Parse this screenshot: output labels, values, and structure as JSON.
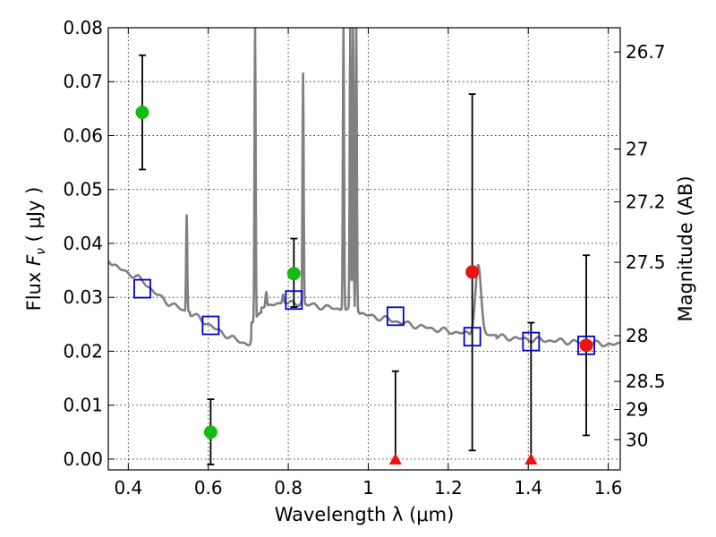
{
  "chart_data": {
    "type": "scatter",
    "title": "",
    "xlabel": "Wavelength  λ (μm)",
    "ylabel": "Flux  F_ν  ( μJy )",
    "ylabel_parts": {
      "prefix": "Flux  ",
      "sym": "F",
      "sub": "ν",
      "unit": " ( μJy )"
    },
    "y2label": "Magnitude (AB)",
    "xlim": [
      0.35,
      1.63
    ],
    "ylim": [
      -0.002,
      0.08
    ],
    "xticks": [
      {
        "value": 0.4,
        "label": "0.4"
      },
      {
        "value": 0.6,
        "label": "0.6"
      },
      {
        "value": 0.8,
        "label": "0.8"
      },
      {
        "value": 1.0,
        "label": "1"
      },
      {
        "value": 1.2,
        "label": "1.2"
      },
      {
        "value": 1.4,
        "label": "1.4"
      },
      {
        "value": 1.6,
        "label": "1.6"
      }
    ],
    "yticks": [
      {
        "value": 0.0,
        "label": "0.00"
      },
      {
        "value": 0.01,
        "label": "0.01"
      },
      {
        "value": 0.02,
        "label": "0.02"
      },
      {
        "value": 0.03,
        "label": "0.03"
      },
      {
        "value": 0.04,
        "label": "0.04"
      },
      {
        "value": 0.05,
        "label": "0.05"
      },
      {
        "value": 0.06,
        "label": "0.06"
      },
      {
        "value": 0.07,
        "label": "0.07"
      },
      {
        "value": 0.08,
        "label": "0.08"
      }
    ],
    "y2ticks": [
      {
        "flux": 0.0755,
        "label": "26.7"
      },
      {
        "flux": 0.0575,
        "label": "27"
      },
      {
        "flux": 0.0477,
        "label": "27.2"
      },
      {
        "flux": 0.0365,
        "label": "27.5"
      },
      {
        "flux": 0.0229,
        "label": "28"
      },
      {
        "flux": 0.0144,
        "label": "28.5"
      },
      {
        "flux": 0.0092,
        "label": "29"
      },
      {
        "flux": 0.0036,
        "label": "30"
      }
    ],
    "grid": true,
    "colors": {
      "detection": "#11bb11",
      "marginal": "#ee1111",
      "upper_limit": "#ee1111",
      "model": "#0000cc",
      "spectrum": "#808080",
      "errorbar": "#000000"
    },
    "series": [
      {
        "kind": "detection",
        "points": [
          {
            "x": 0.435,
            "y": 0.0643,
            "ylo": 0.0537,
            "yhi": 0.0749
          },
          {
            "x": 0.606,
            "y": 0.005,
            "ylo": -0.001,
            "yhi": 0.0111
          },
          {
            "x": 0.814,
            "y": 0.0344,
            "ylo": 0.0282,
            "yhi": 0.0409
          }
        ]
      },
      {
        "kind": "marginal",
        "points": [
          {
            "x": 1.26,
            "y": 0.0347,
            "ylo": 0.0016,
            "yhi": 0.0677
          },
          {
            "x": 1.545,
            "y": 0.0211,
            "ylo": 0.0044,
            "yhi": 0.0378
          }
        ]
      },
      {
        "kind": "upper_limit",
        "points": [
          {
            "x": 1.068,
            "y": 0.0,
            "ylo": 0.0,
            "yhi": 0.0163
          },
          {
            "x": 1.407,
            "y": 0.0,
            "ylo": 0.0,
            "yhi": 0.0253
          }
        ]
      },
      {
        "kind": "model",
        "points": [
          {
            "x": 0.435,
            "y": 0.0316
          },
          {
            "x": 0.606,
            "y": 0.0248
          },
          {
            "x": 0.814,
            "y": 0.0295
          },
          {
            "x": 1.068,
            "y": 0.0265
          },
          {
            "x": 1.26,
            "y": 0.0227
          },
          {
            "x": 1.407,
            "y": 0.0218
          },
          {
            "x": 1.545,
            "y": 0.0211
          }
        ]
      }
    ],
    "spectrum": {
      "continuum": [
        [
          0.35,
          0.0372
        ],
        [
          0.36,
          0.0362
        ],
        [
          0.38,
          0.0352
        ],
        [
          0.4,
          0.0345
        ],
        [
          0.42,
          0.0338
        ],
        [
          0.44,
          0.0328
        ],
        [
          0.46,
          0.0313
        ],
        [
          0.48,
          0.03
        ],
        [
          0.5,
          0.029
        ],
        [
          0.52,
          0.0283
        ],
        [
          0.54,
          0.0275
        ],
        [
          0.56,
          0.0268
        ],
        [
          0.58,
          0.026
        ],
        [
          0.6,
          0.025
        ],
        [
          0.62,
          0.024
        ],
        [
          0.64,
          0.0232
        ],
        [
          0.66,
          0.0224
        ],
        [
          0.68,
          0.0218
        ],
        [
          0.7,
          0.0213
        ],
        [
          0.705,
          0.0215
        ],
        [
          0.715,
          0.025
        ],
        [
          0.73,
          0.0275
        ],
        [
          0.75,
          0.0283
        ],
        [
          0.77,
          0.0287
        ],
        [
          0.79,
          0.0289
        ],
        [
          0.81,
          0.0288
        ],
        [
          0.84,
          0.0287
        ],
        [
          0.87,
          0.0284
        ],
        [
          0.9,
          0.0281
        ],
        [
          0.93,
          0.0278
        ],
        [
          0.96,
          0.0274
        ],
        [
          1.0,
          0.0266
        ],
        [
          1.05,
          0.0259
        ],
        [
          1.1,
          0.025
        ],
        [
          1.15,
          0.0243
        ],
        [
          1.2,
          0.0237
        ],
        [
          1.25,
          0.0232
        ],
        [
          1.3,
          0.0228
        ],
        [
          1.35,
          0.0225
        ],
        [
          1.4,
          0.0222
        ],
        [
          1.45,
          0.022
        ],
        [
          1.5,
          0.0218
        ],
        [
          1.55,
          0.0215
        ],
        [
          1.6,
          0.0213
        ],
        [
          1.63,
          0.0212
        ]
      ],
      "lines": [
        {
          "x": 0.546,
          "peak": 0.0452,
          "w": 0.003
        },
        {
          "x": 0.717,
          "peak": 0.08,
          "w": 0.003
        },
        {
          "x": 0.745,
          "peak": 0.031,
          "w": 0.004
        },
        {
          "x": 0.787,
          "peak": 0.0305,
          "w": 0.004
        },
        {
          "x": 0.837,
          "peak": 0.0715,
          "w": 0.003
        },
        {
          "x": 0.938,
          "peak": 0.08,
          "w": 0.003
        },
        {
          "x": 0.955,
          "peak": 0.08,
          "w": 0.003
        },
        {
          "x": 0.962,
          "peak": 0.08,
          "w": 0.003
        },
        {
          "x": 0.97,
          "peak": 0.08,
          "w": 0.003
        },
        {
          "x": 1.275,
          "peak": 0.036,
          "w": 0.015
        }
      ]
    }
  }
}
